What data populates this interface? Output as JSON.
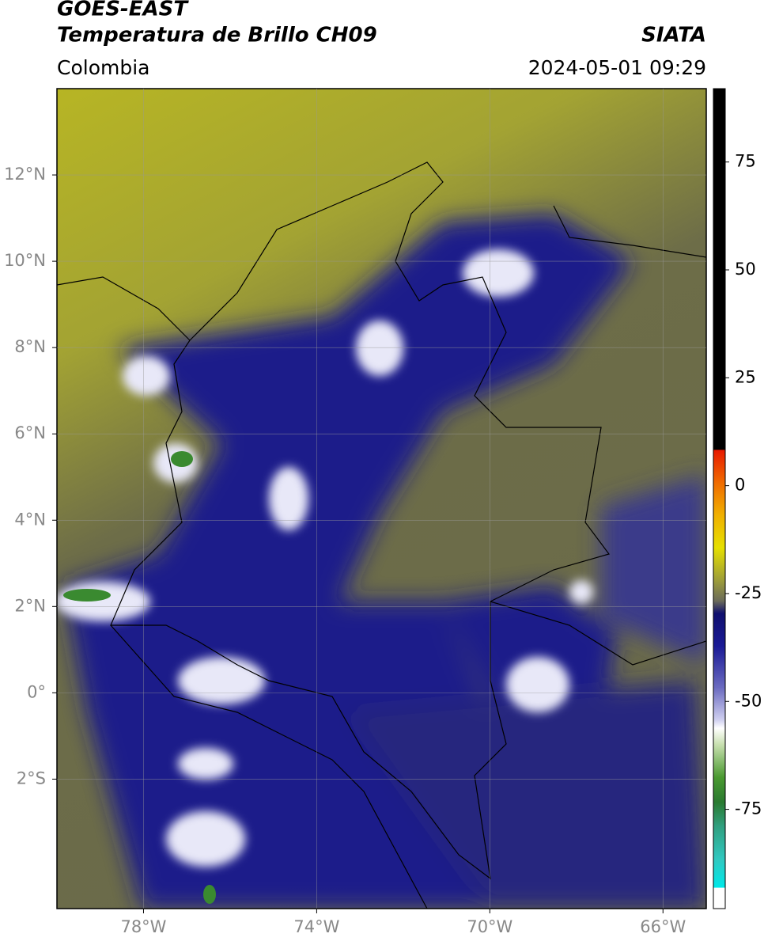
{
  "header": {
    "title": "GOES-EAST",
    "subtitle": "Temperatura de Brillo CH09",
    "source": "SIATA",
    "region": "Colombia",
    "datetime": "2024-05-01 09:29"
  },
  "map": {
    "xlim": [
      -80,
      -65
    ],
    "ylim": [
      -5,
      14
    ],
    "xticks": [
      {
        "value": -78,
        "label": "78°W"
      },
      {
        "value": -74,
        "label": "74°W"
      },
      {
        "value": -70,
        "label": "70°W"
      },
      {
        "value": -66,
        "label": "66°W"
      }
    ],
    "yticks": [
      {
        "value": 12,
        "label": "12°N"
      },
      {
        "value": 10,
        "label": "10°N"
      },
      {
        "value": 8,
        "label": "8°N"
      },
      {
        "value": 6,
        "label": "6°N"
      },
      {
        "value": 4,
        "label": "4°N"
      },
      {
        "value": 2,
        "label": "2°N"
      },
      {
        "value": 0,
        "label": "0°"
      },
      {
        "value": -2,
        "label": "2°S"
      }
    ]
  },
  "colorbar": {
    "lim": [
      -98,
      92
    ],
    "ticks": [
      75,
      50,
      25,
      0,
      -25,
      -50,
      -75
    ]
  }
}
